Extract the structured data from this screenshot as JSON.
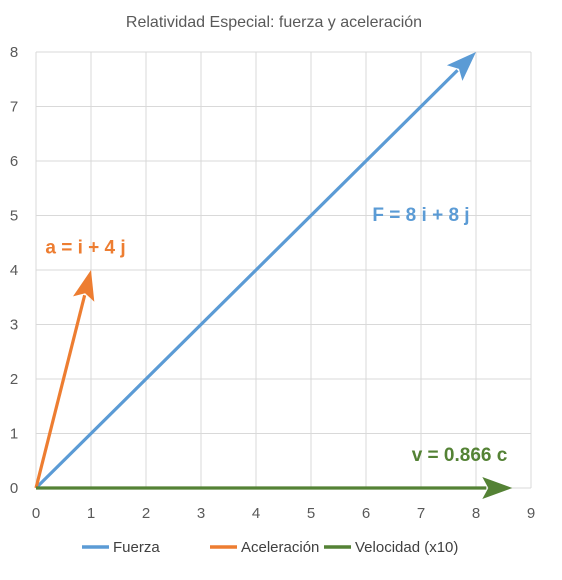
{
  "chart_data": {
    "type": "scatter",
    "title": "Relatividad Especial: fuerza y aceleración",
    "xlim": [
      0,
      9
    ],
    "ylim": [
      0,
      8
    ],
    "x_ticks": [
      "0",
      "1",
      "2",
      "3",
      "4",
      "5",
      "6",
      "7",
      "8",
      "9"
    ],
    "y_ticks": [
      "0",
      "1",
      "2",
      "3",
      "4",
      "5",
      "6",
      "7",
      "8"
    ],
    "grid": true,
    "legend_position": "bottom",
    "series": [
      {
        "name": "Fuerza",
        "color": "#5B9BD5",
        "x": [
          0,
          8
        ],
        "y": [
          0,
          8
        ]
      },
      {
        "name": "Aceleración",
        "color": "#ED7D31",
        "x": [
          0,
          1
        ],
        "y": [
          0,
          4
        ]
      },
      {
        "name": "Velocidad (x10)",
        "color": "#548235",
        "x": [
          0,
          8.66
        ],
        "y": [
          0,
          0
        ]
      }
    ],
    "annotations": [
      {
        "text": "F = 8 i + 8 j",
        "x": 7.0,
        "y": 4.9,
        "color": "#5B9BD5"
      },
      {
        "text": "a = i + 4 j",
        "x": 0.9,
        "y": 4.3,
        "color": "#ED7D31"
      },
      {
        "text": "v = 0.866 c",
        "x": 7.7,
        "y": 0.5,
        "color": "#548235"
      }
    ]
  }
}
